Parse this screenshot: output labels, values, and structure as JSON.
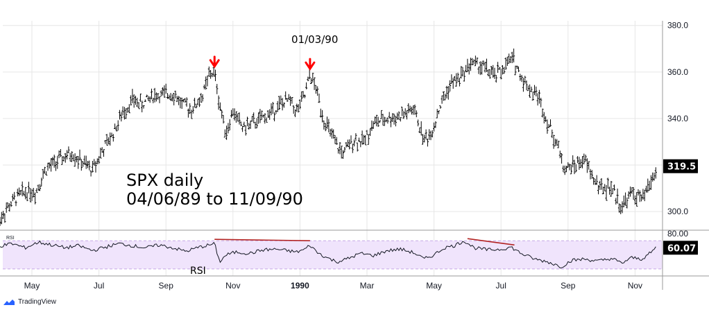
{
  "chart_data": {
    "type": "ohlc",
    "title": "SPX daily",
    "subtitle": "04/06/89 to 11/09/90",
    "annotation": "01/03/90",
    "y_ticks": [
      "380.0",
      "360.0",
      "340.0",
      "300.0"
    ],
    "ylim": [
      292,
      382
    ],
    "last_price": "319.5",
    "rsi": {
      "label": "RSI",
      "small_label": "RSI",
      "ticks": [
        "80.00"
      ],
      "last_value": "60.07",
      "band": [
        30,
        70
      ],
      "ylim": [
        20,
        85
      ]
    },
    "x_labels": [
      {
        "text": "May",
        "month": 1.0,
        "bold": false
      },
      {
        "text": "Jul",
        "month": 3.0,
        "bold": false
      },
      {
        "text": "Sep",
        "month": 5.0,
        "bold": false
      },
      {
        "text": "Nov",
        "month": 7.0,
        "bold": false
      },
      {
        "text": "1990",
        "month": 9.0,
        "bold": true
      },
      {
        "text": "Mar",
        "month": 11.0,
        "bold": false
      },
      {
        "text": "May",
        "month": 13.0,
        "bold": false
      },
      {
        "text": "Jul",
        "month": 15.0,
        "bold": false
      },
      {
        "text": "Sep",
        "month": 17.0,
        "bold": false
      },
      {
        "text": "Nov",
        "month": 19.0,
        "bold": false
      }
    ],
    "price_path": [
      [
        0.0,
        296
      ],
      [
        0.3,
        302
      ],
      [
        0.6,
        307
      ],
      [
        0.9,
        309
      ],
      [
        1.1,
        308
      ],
      [
        1.4,
        318
      ],
      [
        1.8,
        322
      ],
      [
        2.2,
        325
      ],
      [
        2.5,
        321
      ],
      [
        2.8,
        318
      ],
      [
        3.1,
        326
      ],
      [
        3.4,
        333
      ],
      [
        3.7,
        342
      ],
      [
        4.0,
        348
      ],
      [
        4.3,
        346
      ],
      [
        4.6,
        350
      ],
      [
        4.9,
        350
      ],
      [
        5.2,
        351
      ],
      [
        5.5,
        346
      ],
      [
        5.8,
        344
      ],
      [
        6.1,
        350
      ],
      [
        6.3,
        359
      ],
      [
        6.45,
        360
      ],
      [
        6.6,
        346
      ],
      [
        6.8,
        334
      ],
      [
        7.0,
        343
      ],
      [
        7.3,
        336
      ],
      [
        7.6,
        338
      ],
      [
        8.0,
        341
      ],
      [
        8.4,
        346
      ],
      [
        8.7,
        348
      ],
      [
        8.9,
        343
      ],
      [
        9.15,
        350
      ],
      [
        9.3,
        359
      ],
      [
        9.5,
        352
      ],
      [
        9.7,
        340
      ],
      [
        9.9,
        334
      ],
      [
        10.1,
        328
      ],
      [
        10.3,
        325
      ],
      [
        10.6,
        331
      ],
      [
        10.9,
        330
      ],
      [
        11.2,
        338
      ],
      [
        11.6,
        340
      ],
      [
        12.0,
        341
      ],
      [
        12.4,
        344
      ],
      [
        12.7,
        331
      ],
      [
        12.9,
        333
      ],
      [
        13.2,
        346
      ],
      [
        13.5,
        355
      ],
      [
        13.8,
        358
      ],
      [
        14.1,
        364
      ],
      [
        14.5,
        362
      ],
      [
        14.8,
        358
      ],
      [
        15.1,
        362
      ],
      [
        15.35,
        366
      ],
      [
        15.6,
        358
      ],
      [
        15.9,
        352
      ],
      [
        16.1,
        350
      ],
      [
        16.4,
        338
      ],
      [
        16.7,
        328
      ],
      [
        16.9,
        318
      ],
      [
        17.2,
        320
      ],
      [
        17.5,
        322
      ],
      [
        17.8,
        313
      ],
      [
        18.0,
        310
      ],
      [
        18.3,
        310
      ],
      [
        18.6,
        302
      ],
      [
        18.9,
        308
      ],
      [
        19.2,
        305
      ],
      [
        19.45,
        312
      ],
      [
        19.6,
        317
      ]
    ],
    "rsi_path": [
      [
        0.0,
        62
      ],
      [
        0.4,
        66
      ],
      [
        0.8,
        60
      ],
      [
        1.2,
        68
      ],
      [
        1.6,
        64
      ],
      [
        2.0,
        60
      ],
      [
        2.4,
        63
      ],
      [
        2.8,
        56
      ],
      [
        3.2,
        61
      ],
      [
        3.6,
        66
      ],
      [
        4.0,
        63
      ],
      [
        4.4,
        60
      ],
      [
        4.8,
        64
      ],
      [
        5.2,
        60
      ],
      [
        5.6,
        55
      ],
      [
        6.0,
        61
      ],
      [
        6.3,
        64
      ],
      [
        6.45,
        66
      ],
      [
        6.6,
        40
      ],
      [
        6.8,
        50
      ],
      [
        7.1,
        54
      ],
      [
        7.5,
        52
      ],
      [
        7.9,
        57
      ],
      [
        8.3,
        58
      ],
      [
        8.6,
        56
      ],
      [
        8.9,
        54
      ],
      [
        9.15,
        58
      ],
      [
        9.3,
        64
      ],
      [
        9.5,
        54
      ],
      [
        9.8,
        46
      ],
      [
        10.1,
        40
      ],
      [
        10.4,
        44
      ],
      [
        10.8,
        52
      ],
      [
        11.2,
        49
      ],
      [
        11.6,
        56
      ],
      [
        12.0,
        58
      ],
      [
        12.4,
        53
      ],
      [
        12.7,
        44
      ],
      [
        13.0,
        50
      ],
      [
        13.3,
        60
      ],
      [
        13.6,
        63
      ],
      [
        13.9,
        70
      ],
      [
        14.2,
        60
      ],
      [
        14.6,
        57
      ],
      [
        15.0,
        58
      ],
      [
        15.3,
        61
      ],
      [
        15.6,
        52
      ],
      [
        16.0,
        44
      ],
      [
        16.4,
        40
      ],
      [
        16.8,
        33
      ],
      [
        17.1,
        42
      ],
      [
        17.5,
        44
      ],
      [
        17.9,
        41
      ],
      [
        18.3,
        45
      ],
      [
        18.6,
        38
      ],
      [
        18.9,
        46
      ],
      [
        19.2,
        44
      ],
      [
        19.5,
        54
      ],
      [
        19.6,
        60
      ]
    ],
    "price_trendlines": [],
    "rsi_trendlines": [
      {
        "x": [
          6.45,
          9.3
        ],
        "y": [
          72,
          70
        ]
      },
      {
        "x": [
          14.0,
          15.4
        ],
        "y": [
          73,
          64
        ]
      }
    ],
    "arrows": [
      {
        "month": 6.45,
        "price": 360
      },
      {
        "month": 9.3,
        "price": 359
      }
    ],
    "colors": {
      "candle": "#000000",
      "arrow": "#ff0000",
      "trendline": "#b22222",
      "rsi_line": "#131722",
      "rsi_band": "#f0e4fc",
      "grid": "#e6e6e6",
      "badge": "#000000"
    }
  },
  "brand": {
    "name": "TradingView",
    "icon": "tradingview-logo-icon"
  }
}
